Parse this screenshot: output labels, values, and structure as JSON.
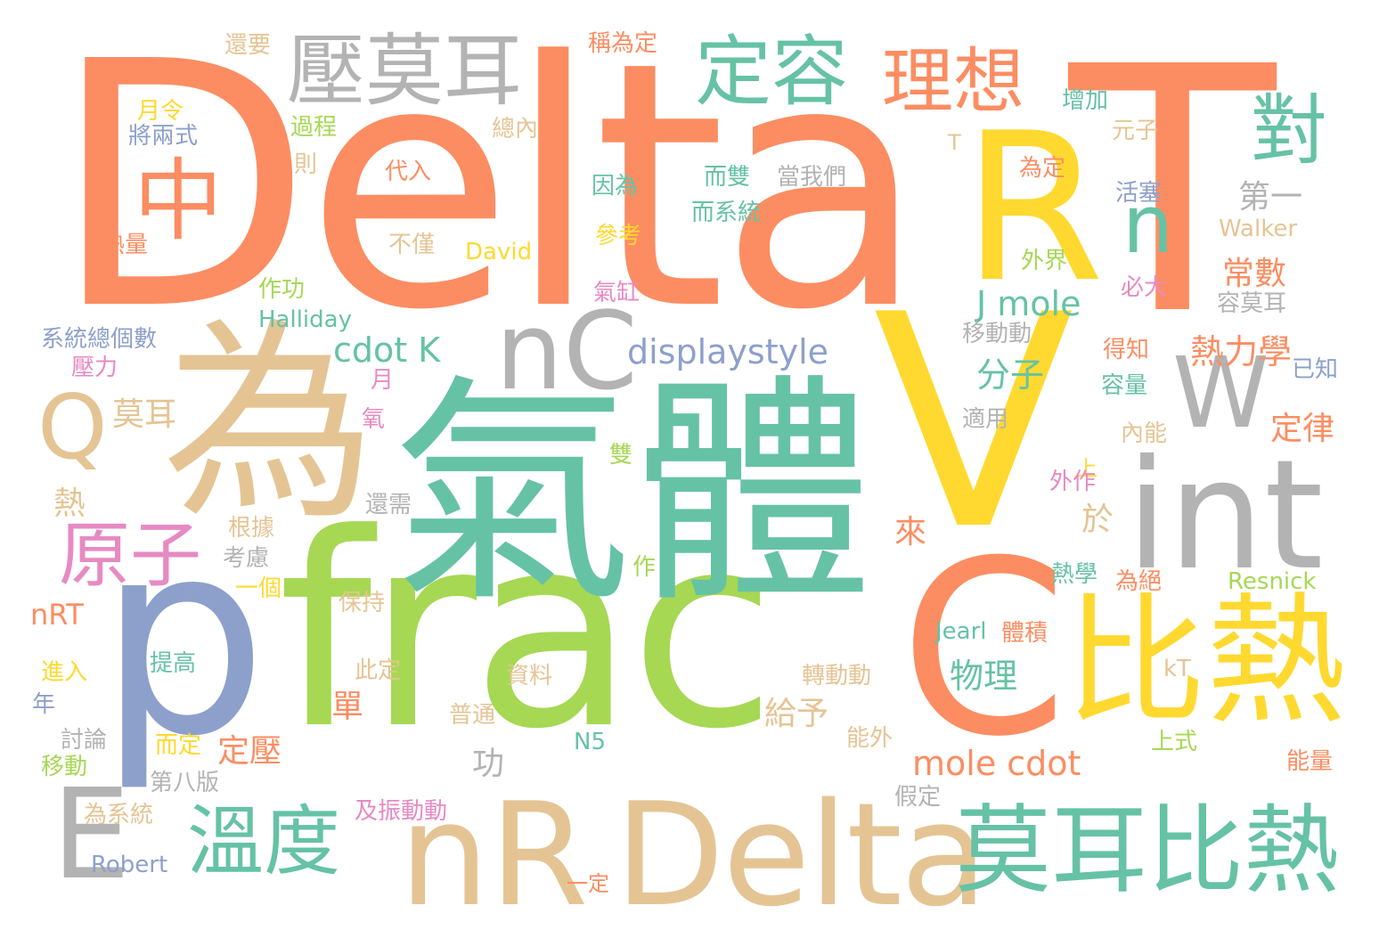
{
  "words": [
    {
      "id": "w1",
      "text": "Delta"
    },
    {
      "id": "w2",
      "text": "R"
    },
    {
      "id": "w3",
      "text": "T"
    },
    {
      "id": "w4",
      "text": "V"
    },
    {
      "id": "w5",
      "text": "frac"
    },
    {
      "id": "w6",
      "text": "氣體"
    },
    {
      "id": "w7",
      "text": "為"
    },
    {
      "id": "w8",
      "text": "p"
    },
    {
      "id": "w9",
      "text": "C"
    },
    {
      "id": "w10",
      "text": "比熱"
    },
    {
      "id": "w11",
      "text": "nR"
    },
    {
      "id": "w12",
      "text": "Delta"
    },
    {
      "id": "w13",
      "text": "莫耳比熱"
    },
    {
      "id": "w14",
      "text": "int"
    },
    {
      "id": "w15",
      "text": "nC"
    },
    {
      "id": "w16",
      "text": "W"
    },
    {
      "id": "w17",
      "text": "壓莫耳"
    },
    {
      "id": "w18",
      "text": "定容"
    },
    {
      "id": "w19",
      "text": "理想"
    },
    {
      "id": "w20",
      "text": "對"
    },
    {
      "id": "w21",
      "text": "中"
    },
    {
      "id": "w22",
      "text": "n"
    },
    {
      "id": "w23",
      "text": "原子"
    },
    {
      "id": "w24",
      "text": "溫度"
    },
    {
      "id": "w25",
      "text": "E"
    },
    {
      "id": "w26",
      "text": "Q"
    },
    {
      "id": "w27",
      "text": "displaystyle"
    },
    {
      "id": "w28",
      "text": "cdot K"
    },
    {
      "id": "w29",
      "text": "J mole"
    },
    {
      "id": "w30",
      "text": "mole cdot"
    },
    {
      "id": "w31",
      "text": "熱力學"
    },
    {
      "id": "w32",
      "text": "分子"
    },
    {
      "id": "w33",
      "text": "物理"
    },
    {
      "id": "w34",
      "text": "常數"
    },
    {
      "id": "w35",
      "text": "第一"
    },
    {
      "id": "w36",
      "text": "定律"
    },
    {
      "id": "w37",
      "text": "給予"
    },
    {
      "id": "w38",
      "text": "定壓"
    },
    {
      "id": "w39",
      "text": "莫耳"
    },
    {
      "id": "w40",
      "text": "單"
    },
    {
      "id": "w41",
      "text": "功"
    },
    {
      "id": "w42",
      "text": "於"
    },
    {
      "id": "w43",
      "text": "來"
    },
    {
      "id": "w44",
      "text": "熱"
    },
    {
      "id": "w45",
      "text": "還要"
    },
    {
      "id": "w46",
      "text": "月令"
    },
    {
      "id": "w47",
      "text": "將兩式"
    },
    {
      "id": "w48",
      "text": "過程"
    },
    {
      "id": "w49",
      "text": "則"
    },
    {
      "id": "w50",
      "text": "代入"
    },
    {
      "id": "w51",
      "text": "熱量"
    },
    {
      "id": "w52",
      "text": "不僅"
    },
    {
      "id": "w53",
      "text": "David"
    },
    {
      "id": "w54",
      "text": "作功"
    },
    {
      "id": "w55",
      "text": "Halliday"
    },
    {
      "id": "w56",
      "text": "系統總個數"
    },
    {
      "id": "w57",
      "text": "壓力"
    },
    {
      "id": "w58",
      "text": "月"
    },
    {
      "id": "w59",
      "text": "氧"
    },
    {
      "id": "w60",
      "text": "稱為定"
    },
    {
      "id": "w61",
      "text": "總內"
    },
    {
      "id": "w62",
      "text": "因為"
    },
    {
      "id": "w63",
      "text": "而雙"
    },
    {
      "id": "w64",
      "text": "當我們"
    },
    {
      "id": "w65",
      "text": "而系統"
    },
    {
      "id": "w66",
      "text": "參考"
    },
    {
      "id": "w67",
      "text": "氣缸"
    },
    {
      "id": "w68",
      "text": "增加"
    },
    {
      "id": "w69",
      "text": "元子"
    },
    {
      "id": "w70",
      "text": "T"
    },
    {
      "id": "w71",
      "text": "為定"
    },
    {
      "id": "w72",
      "text": "活塞"
    },
    {
      "id": "w73",
      "text": "Walker"
    },
    {
      "id": "w74",
      "text": "外界"
    },
    {
      "id": "w75",
      "text": "必大"
    },
    {
      "id": "w76",
      "text": "容莫耳"
    },
    {
      "id": "w77",
      "text": "移動動"
    },
    {
      "id": "w78",
      "text": "得知"
    },
    {
      "id": "w79",
      "text": "容量"
    },
    {
      "id": "w80",
      "text": "已知"
    },
    {
      "id": "w81",
      "text": "適用"
    },
    {
      "id": "w82",
      "text": "內能"
    },
    {
      "id": "w83",
      "text": "雙"
    },
    {
      "id": "w84",
      "text": "上"
    },
    {
      "id": "w85",
      "text": "外作"
    },
    {
      "id": "w86",
      "text": "還需"
    },
    {
      "id": "w87",
      "text": "根據"
    },
    {
      "id": "w88",
      "text": "考慮"
    },
    {
      "id": "w89",
      "text": "一個"
    },
    {
      "id": "w90",
      "text": "保持"
    },
    {
      "id": "w91",
      "text": "作"
    },
    {
      "id": "w92",
      "text": "nRT"
    },
    {
      "id": "w93",
      "text": "提高"
    },
    {
      "id": "w94",
      "text": "進入"
    },
    {
      "id": "w95",
      "text": "此定"
    },
    {
      "id": "w96",
      "text": "資料"
    },
    {
      "id": "w97",
      "text": "年"
    },
    {
      "id": "w98",
      "text": "討論"
    },
    {
      "id": "w99",
      "text": "而定"
    },
    {
      "id": "w100",
      "text": "普通"
    },
    {
      "id": "w101",
      "text": "移動"
    },
    {
      "id": "w102",
      "text": "第八版"
    },
    {
      "id": "w103",
      "text": "N5"
    },
    {
      "id": "w104",
      "text": "為系統"
    },
    {
      "id": "w105",
      "text": "及振動動"
    },
    {
      "id": "w106",
      "text": "Robert"
    },
    {
      "id": "w107",
      "text": "一定"
    },
    {
      "id": "w108",
      "text": "假定"
    },
    {
      "id": "w109",
      "text": "能外"
    },
    {
      "id": "w110",
      "text": "轉動動"
    },
    {
      "id": "w111",
      "text": "Jearl"
    },
    {
      "id": "w112",
      "text": "體積"
    },
    {
      "id": "w113",
      "text": "熱學"
    },
    {
      "id": "w114",
      "text": "為絕"
    },
    {
      "id": "w115",
      "text": "Resnick"
    },
    {
      "id": "w116",
      "text": "kT"
    },
    {
      "id": "w117",
      "text": "上式"
    },
    {
      "id": "w118",
      "text": "能量"
    }
  ],
  "colors": {
    "background": "#ffffff",
    "orange": "#fc8d62",
    "green": "#66c2a5",
    "lime": "#a6d854",
    "yellow": "#ffd92f",
    "tan": "#e5c494",
    "gray": "#b3b3b3",
    "blue": "#8da0cb",
    "pink": "#e78ac3"
  }
}
